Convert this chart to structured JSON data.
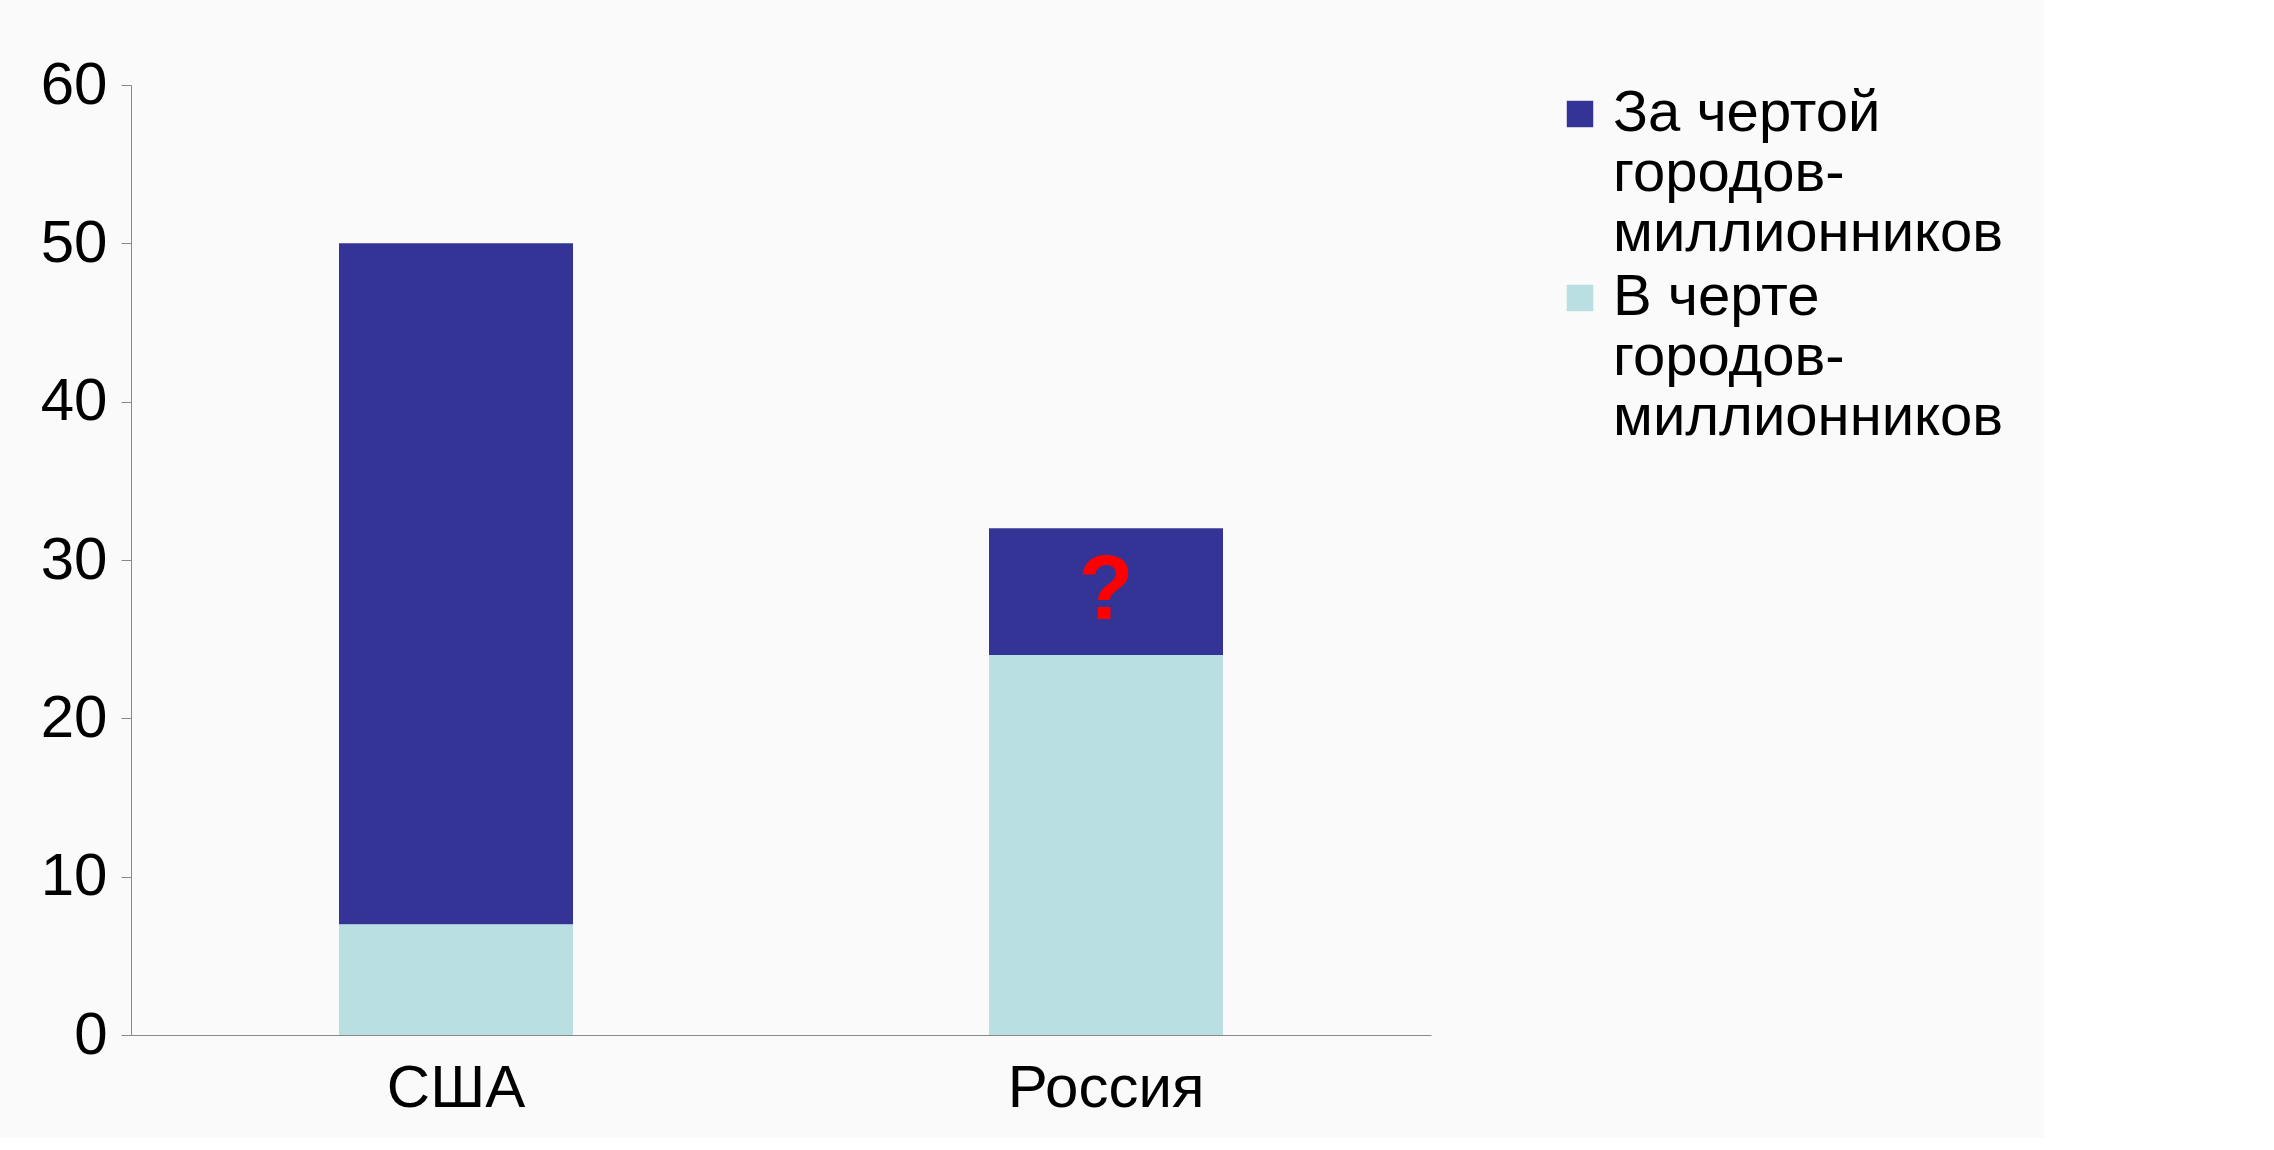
{
  "chart_data": {
    "type": "bar",
    "stacked": true,
    "categories": [
      "США",
      "Россия"
    ],
    "series": [
      {
        "name": "В черте городов-миллионников",
        "color": "#b9dfe3",
        "values": [
          7,
          24
        ]
      },
      {
        "name": "За чертой городов-миллионников",
        "color": "#343496",
        "values": [
          43,
          8
        ]
      }
    ],
    "ylim": [
      0,
      60
    ],
    "yticks": [
      0,
      10,
      20,
      30,
      40,
      50,
      60
    ],
    "grid": false,
    "legend": "right",
    "annotations": [
      "?"
    ]
  }
}
